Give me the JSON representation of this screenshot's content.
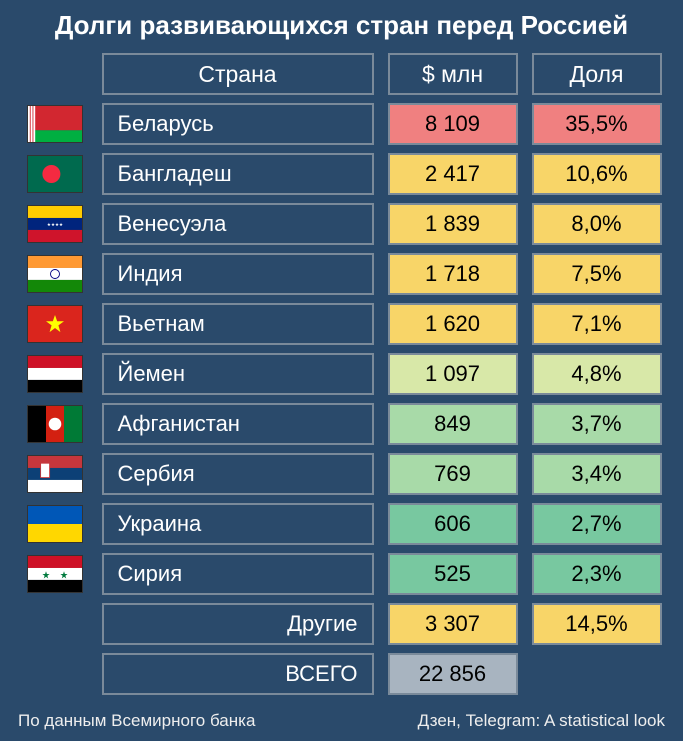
{
  "title": "Долги развивающихся стран перед Россией",
  "columns": {
    "country": "Страна",
    "amount": "$ млн",
    "share": "Доля"
  },
  "rows": [
    {
      "country": "Беларусь",
      "amount": "8 109",
      "share": "35,5%",
      "color": "#f08080",
      "flag": "belarus"
    },
    {
      "country": "Бангладеш",
      "amount": "2 417",
      "share": "10,6%",
      "color": "#f8d568",
      "flag": "bangladesh"
    },
    {
      "country": "Венесуэла",
      "amount": "1 839",
      "share": "8,0%",
      "color": "#f8d568",
      "flag": "venezuela"
    },
    {
      "country": "Индия",
      "amount": "1 718",
      "share": "7,5%",
      "color": "#f8d568",
      "flag": "india"
    },
    {
      "country": "Вьетнам",
      "amount": "1 620",
      "share": "7,1%",
      "color": "#f8d568",
      "flag": "vietnam"
    },
    {
      "country": "Йемен",
      "amount": "1 097",
      "share": "4,8%",
      "color": "#d8e8a8",
      "flag": "yemen"
    },
    {
      "country": "Афганистан",
      "amount": "849",
      "share": "3,7%",
      "color": "#a8daa8",
      "flag": "afghanistan"
    },
    {
      "country": "Сербия",
      "amount": "769",
      "share": "3,4%",
      "color": "#a8daa8",
      "flag": "serbia"
    },
    {
      "country": "Украина",
      "amount": "606",
      "share": "2,7%",
      "color": "#78c8a0",
      "flag": "ukraine"
    },
    {
      "country": "Сирия",
      "amount": "525",
      "share": "2,3%",
      "color": "#78c8a0",
      "flag": "syria"
    }
  ],
  "other": {
    "label": "Другие",
    "amount": "3 307",
    "share": "14,5%",
    "color": "#f8d568"
  },
  "total": {
    "label": "ВСЕГО",
    "amount": "22 856",
    "color": "#a8b4c0"
  },
  "footer_left": "По данным Всемирного банка",
  "footer_right": "Дзен, Telegram: A statistical look",
  "background": "#2a4a6b",
  "border_color": "#7a8a9a"
}
